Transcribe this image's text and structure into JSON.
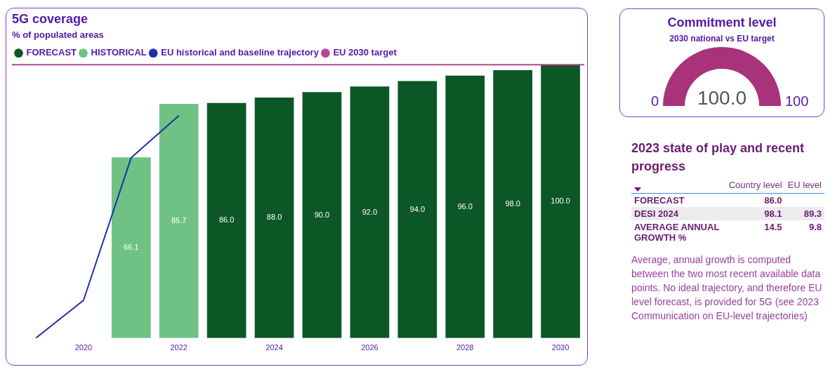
{
  "chart_data": [
    {
      "type": "bar",
      "title": "5G coverage",
      "subtitle": "% of populated areas",
      "categories": [
        null,
        "2020",
        null,
        "2022",
        null,
        "2024",
        null,
        "2026",
        null,
        "2028",
        null,
        "2030"
      ],
      "ylim": [
        0,
        100
      ],
      "tick_labels": "x",
      "grid": false,
      "legend": "top left",
      "series": [
        {
          "name": "FORECAST",
          "type": "bar",
          "color": "#0b5726",
          "values": [
            null,
            null,
            null,
            null,
            86,
            88,
            90,
            92,
            94,
            96,
            98,
            100
          ],
          "value_labels": [
            null,
            null,
            null,
            null,
            "86.0",
            "88.0",
            "90.0",
            "92.0",
            "94.0",
            "96.0",
            "98.0",
            "100.0"
          ]
        },
        {
          "name": "HISTORICAL",
          "type": "bar",
          "color": "#6fc284",
          "values": [
            null,
            null,
            66.1,
            85.7,
            null,
            null,
            null,
            null,
            null,
            null,
            null,
            null
          ],
          "value_labels": [
            null,
            null,
            "66.1",
            "85.7",
            null,
            null,
            null,
            null,
            null,
            null,
            null,
            null
          ]
        },
        {
          "name": "EU historical and baseline trajectory",
          "type": "line",
          "color": "#1f2fa8",
          "values": [
            0,
            13.8,
            66,
            81.4,
            null,
            null,
            null,
            null,
            null,
            null,
            null,
            null
          ]
        }
      ],
      "ref_lines": [
        {
          "axis": "y",
          "value": 100,
          "label": "EU 2030 target",
          "color": "#b5478f"
        }
      ]
    },
    {
      "type": "other",
      "title": "Commitment level",
      "subtitle": "2030 national vs EU target",
      "categories": [
        null
      ],
      "values": [
        100
      ],
      "colors": [
        "#a8337a"
      ],
      "value_labels": [
        "100.0"
      ],
      "annotations": [
        "0",
        "100"
      ]
    },
    {
      "type": "other",
      "title": "2023 state of play and recent progress",
      "categories": [
        "Country level",
        "EU level"
      ],
      "y_categories": [
        "FORECAST",
        "DESI 2024",
        "AVERAGE ANNUAL GROWTH %"
      ],
      "cell_labels": [
        [
          "86.0",
          null
        ],
        [
          "98.1",
          "89.3"
        ],
        [
          "14.5",
          "9.8"
        ]
      ],
      "annotations": [
        "Average, annual growth is computed between the two most recent available data points. No ideal trajectory, and therefore EU level forecast, is provided for 5G (see 2023 Communication on EU-level trajectories)"
      ]
    }
  ]
}
